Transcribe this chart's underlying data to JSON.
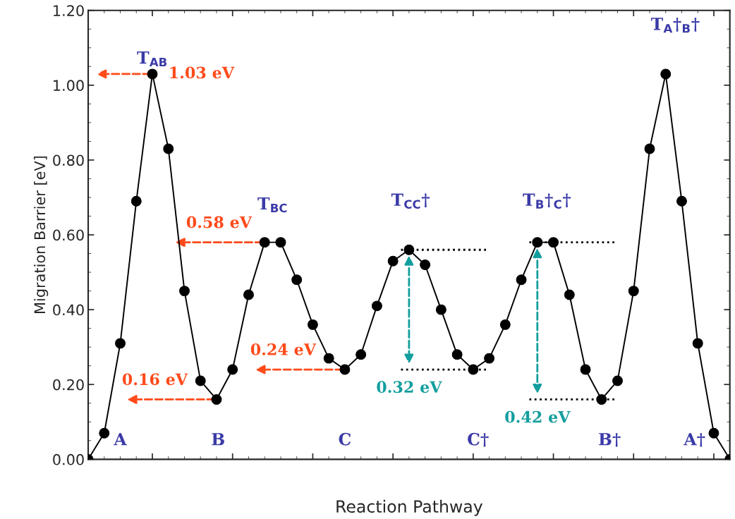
{
  "chart_data": {
    "type": "line",
    "xlabel": "Reaction Pathway",
    "ylabel": "Migration Barrier [eV]",
    "categories": [
      null,
      null,
      null,
      null,
      null,
      null,
      null,
      null,
      null,
      null,
      null,
      null,
      null,
      null,
      null,
      null,
      null,
      null,
      null,
      null,
      null,
      null,
      null,
      null,
      null,
      null,
      null,
      null,
      null,
      null,
      null,
      null,
      null,
      null,
      null,
      null,
      null,
      null,
      null,
      null,
      null
    ],
    "series": [
      {
        "color": "#000000",
        "values": [
          0,
          0.07,
          0.31,
          0.69,
          1.03,
          0.83,
          0.45,
          0.21,
          0.16,
          0.24,
          0.44,
          0.58,
          0.58,
          0.48,
          0.36,
          0.27,
          0.24,
          0.28,
          0.41,
          0.53,
          0.56,
          0.52,
          0.4,
          0.28,
          0.24,
          0.27,
          0.36,
          0.48,
          0.58,
          0.58,
          0.44,
          0.24,
          0.16,
          0.21,
          0.45,
          0.83,
          1.03,
          0.69,
          0.31,
          0.07,
          0
        ]
      }
    ],
    "marker": "circle",
    "line_style": "solid",
    "tick_labels": "y",
    "ylim": [
      0,
      1.2
    ],
    "yticks": [
      {
        "value": 0,
        "label": "0.00"
      },
      {
        "value": 0.2,
        "label": "0.20"
      },
      {
        "value": 0.4,
        "label": "0.40"
      },
      {
        "value": 0.6,
        "label": "0.60"
      },
      {
        "value": 0.8,
        "label": "0.80"
      },
      {
        "value": 1.0,
        "label": "1.00"
      },
      {
        "value": 1.2,
        "label": "1.20"
      }
    ],
    "annotations": [
      "T$_{AB}$",
      "T$_{BC}$",
      "T$_{CC}$†",
      "T$_{B}$†$_{C}$†",
      "T$_{A}$†$_{B}$†",
      "A",
      "B",
      "C",
      "C†",
      "B†",
      "A†",
      "1.03 eV",
      "0.58 eV",
      "0.24 eV",
      "0.16 eV",
      "0.32 eV",
      "0.42 eV"
    ]
  }
}
